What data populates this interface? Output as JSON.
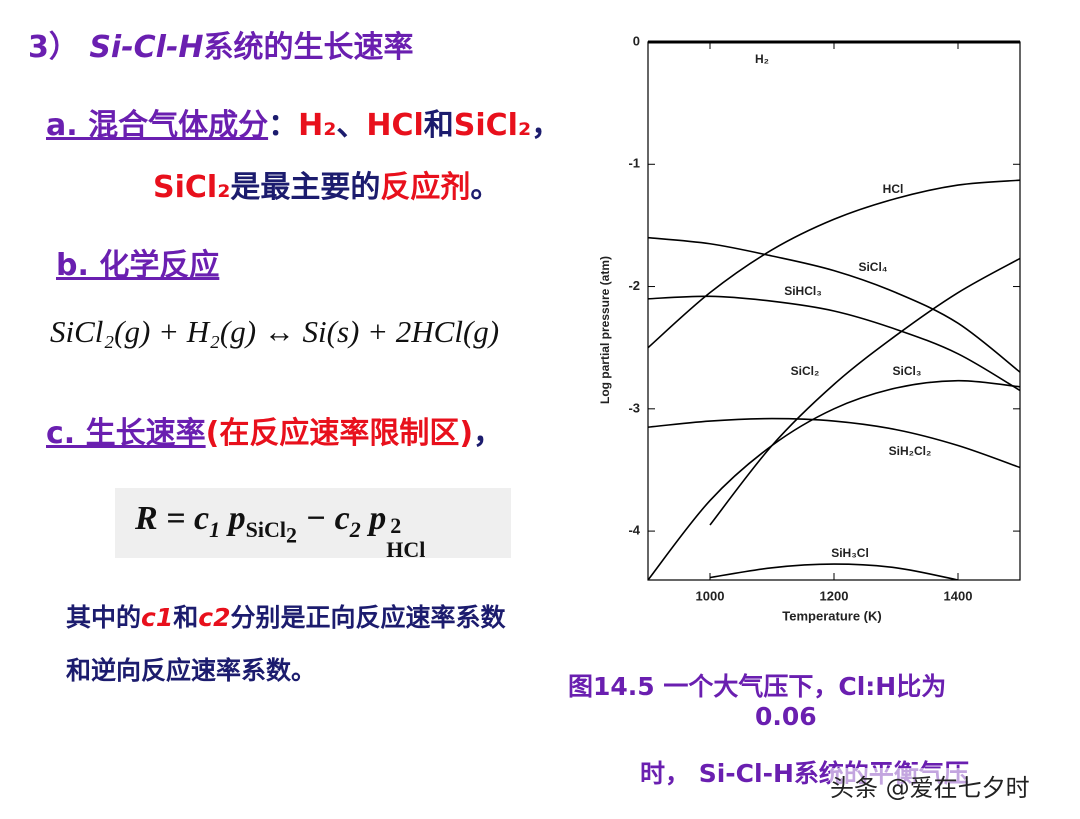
{
  "heading": {
    "number": "3）",
    "system": "Si-Cl-H",
    "rest": "系统的生长速率"
  },
  "item_a": {
    "label": "a. 混合气体成分",
    "colon": "：",
    "gas1": "H₂",
    "sep1": "、",
    "gas2": "HCl",
    "sep2": "和",
    "gas3": "SiCl₂",
    "end": "，",
    "line2": {
      "reactant": "SiCl₂",
      "middle": "是最主要的",
      "role": "反应剂",
      "end": "。"
    }
  },
  "item_b": {
    "label": "b. 化学反应",
    "equation": "SiCl₂(g) + H₂(g) ↔ Si(s) + 2HCl(g)"
  },
  "item_c": {
    "label": "c. 生长速率",
    "note": "(在反应速率限制区)",
    "end": "，"
  },
  "formula": {
    "parts": [
      "R = c",
      "1",
      " p",
      "SiCl",
      "2",
      " − c",
      "2",
      " p",
      "2",
      "HCl"
    ]
  },
  "explanation": {
    "line1": [
      "其中的",
      "c1",
      "和",
      "c2",
      "分别是正向反应速率系数"
    ],
    "line2": "和逆向反应速率系数。"
  },
  "caption": {
    "line1": "图14.5  一个大气压下，Cl:H比为",
    "line2": "0.06",
    "line3": "时，  Si-Cl-H系统的平衡气压"
  },
  "watermark": "头条 @爱在七夕时",
  "chart_data": {
    "type": "line",
    "x_label": "Temperature (K)",
    "y_label": "Log partial pressure (atm)",
    "x": [
      900,
      1000,
      1100,
      1200,
      1300,
      1400,
      1500
    ],
    "xlim": [
      900,
      1500
    ],
    "ylim": [
      -4.4,
      0
    ],
    "xticks": [
      1000,
      1200,
      1400
    ],
    "yticks": [
      0,
      -1,
      -2,
      -3,
      -4
    ],
    "series": [
      {
        "name": "H₂",
        "color": "#000000",
        "values": [
          0,
          0,
          0,
          0,
          0,
          0,
          0
        ]
      },
      {
        "name": "HCl",
        "color": "#000000",
        "values": [
          -2.5,
          -2.05,
          -1.7,
          -1.45,
          -1.28,
          -1.17,
          -1.13
        ]
      },
      {
        "name": "SiCl₄",
        "color": "#000000",
        "values": [
          -1.6,
          -1.65,
          -1.75,
          -1.87,
          -2.05,
          -2.3,
          -2.7
        ]
      },
      {
        "name": "SiHCl₃",
        "color": "#000000",
        "values": [
          -2.1,
          -2.08,
          -2.12,
          -2.2,
          -2.35,
          -2.55,
          -2.85
        ]
      },
      {
        "name": "SiCl₂",
        "color": "#000000",
        "values": [
          null,
          -3.95,
          -3.3,
          -2.8,
          -2.4,
          -2.05,
          -1.77
        ]
      },
      {
        "name": "SiCl₃",
        "color": "#000000",
        "values": [
          -4.4,
          -3.75,
          -3.3,
          -3.0,
          -2.83,
          -2.77,
          -2.82
        ]
      },
      {
        "name": "SiH₂Cl₂",
        "color": "#000000",
        "values": [
          -3.15,
          -3.1,
          -3.08,
          -3.1,
          -3.17,
          -3.3,
          -3.48
        ]
      },
      {
        "name": "SiH₃Cl",
        "color": "#000000",
        "values": [
          null,
          -4.38,
          -4.3,
          -4.27,
          -4.3,
          -4.4,
          null
        ]
      }
    ]
  }
}
